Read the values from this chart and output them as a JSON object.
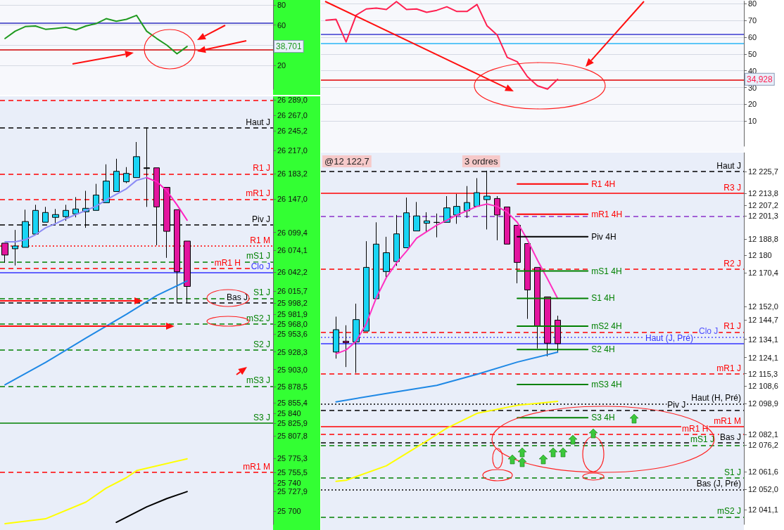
{
  "chart_data": [
    {
      "type": "line",
      "categories": [
        null,
        null,
        null,
        null,
        null,
        null,
        null,
        null,
        null,
        null,
        null,
        null,
        null,
        null,
        null,
        null,
        null,
        null,
        null,
        null,
        null,
        null,
        null,
        null,
        null,
        null,
        null
      ],
      "series": [
        {
          "color": "#1f9a1f",
          "values": [
            46.6,
            53.9,
            58.5,
            59.1,
            55.8,
            56.7,
            57.8,
            55.2,
            59.1,
            61.5,
            66.4,
            63.8,
            65.7,
            69.7,
            53.9,
            46.6,
            40,
            31.4,
            38.7,
            null,
            null,
            null,
            null,
            null,
            null,
            null,
            null
          ]
        }
      ],
      "ylim": [
        -4,
        85
      ],
      "yticks": [
        20,
        {
          "value": 40,
          "label": null
        },
        60,
        80
      ],
      "grid": "y",
      "marker": "none",
      "ref_lines": [
        {
          "axis": "y",
          "value": 61.8,
          "color": "#3030c0",
          "line_style": "solid"
        },
        {
          "axis": "y",
          "value": 35.2,
          "color": "#d00000",
          "line_style": "solid"
        }
      ],
      "annotations": [
        {
          "text": "38,701",
          "y": 38.701
        }
      ]
    },
    {
      "type": "candlestick",
      "categories": [
        null,
        null,
        null,
        null,
        null,
        null,
        null,
        null,
        null,
        null,
        null,
        null,
        null,
        null,
        null,
        null,
        null,
        null,
        null,
        null,
        null,
        null,
        null,
        null,
        null,
        null,
        null
      ],
      "ohlc": [
        [
          26084,
          26084,
          26056,
          26067
        ],
        [
          26076,
          26103,
          26052,
          26080
        ],
        [
          26078,
          26132,
          26078,
          26115
        ],
        [
          26097,
          26139,
          26097,
          26131
        ],
        [
          26114,
          26136,
          26114,
          26128
        ],
        [
          26121,
          26133,
          26113,
          26125
        ],
        [
          26122,
          26139,
          26116,
          26131
        ],
        [
          26126,
          26150,
          26121,
          26133
        ],
        [
          26129,
          26159,
          26106,
          26134
        ],
        [
          26131,
          26169,
          26131,
          26153
        ],
        [
          26142,
          26197,
          26142,
          26173
        ],
        [
          26158,
          26205,
          26158,
          26187
        ],
        [
          26172,
          26193,
          26170,
          26184
        ],
        [
          26178,
          26229,
          26178,
          26208
        ],
        [
          26192,
          26250,
          26136,
          26191
        ],
        [
          26192,
          26192,
          26081,
          26136
        ],
        [
          26164,
          26164,
          26063,
          26101
        ],
        [
          26132,
          26132,
          25998,
          26043
        ],
        [
          26087,
          26087,
          25999,
          26022
        ],
        null,
        null,
        null,
        null,
        null,
        null,
        null,
        null
      ],
      "colors": [
        "#e3159e",
        "#19d5f5",
        "#19d5f5",
        "#19d5f5",
        "#19d5f5",
        "#19d5f5",
        "#19d5f5",
        "#19d5f5",
        "#19d5f5",
        "#19d5f5",
        "#19d5f5",
        "#19d5f5",
        "#19d5f5",
        "#19d5f5",
        "#000000",
        "#e3159e",
        "#e3159e",
        "#e3159e",
        "#e3159e",
        null,
        null,
        null,
        null,
        null,
        null,
        null,
        null
      ],
      "series": [
        {
          "type": "line",
          "color": "#8c8cf5",
          "values": [
            26086,
            26086,
            26089,
            26096,
            26106,
            26112,
            26119,
            26125,
            26131,
            26137,
            26146,
            26154,
            26162,
            26174,
            26178,
            null,
            null,
            null,
            null,
            null,
            null,
            null,
            null,
            null,
            null,
            null,
            null
          ]
        },
        {
          "type": "line",
          "color": "#ff20c0",
          "values": [
            null,
            null,
            null,
            null,
            null,
            null,
            null,
            null,
            null,
            null,
            null,
            null,
            null,
            null,
            26178,
            26172,
            26159,
            26139,
            26117,
            null,
            null,
            null,
            null,
            null,
            null,
            null,
            null
          ]
        },
        {
          "type": "line",
          "color": "#1e88e5",
          "values": [
            25881,
            null,
            null,
            null,
            25913,
            null,
            null,
            null,
            25948,
            null,
            null,
            null,
            25982,
            null,
            null,
            26009,
            null,
            null,
            26030,
            null,
            null,
            null,
            null,
            null,
            null,
            null,
            null
          ]
        },
        {
          "type": "line",
          "color": "#ffff00",
          "values": [
            25682,
            null,
            null,
            null,
            25689,
            null,
            null,
            null,
            25713,
            null,
            25733,
            null,
            25748,
            25758,
            null,
            null,
            null,
            null,
            25775,
            null,
            null,
            null,
            null,
            null,
            null,
            null,
            null
          ]
        },
        {
          "type": "line",
          "color": "#000000",
          "values": [
            null,
            null,
            null,
            null,
            null,
            null,
            null,
            null,
            null,
            null,
            null,
            25684,
            null,
            null,
            25706,
            null,
            25718,
            null,
            25728,
            null,
            null,
            null,
            null,
            null,
            null,
            null,
            null
          ]
        }
      ],
      "ylim": [
        25681,
        26292
      ],
      "marker": "none",
      "yticks": [
        {
          "value": 26289,
          "label": "26 289,0"
        },
        {
          "value": 26267,
          "label": "26 267,0"
        },
        {
          "value": 26245.2,
          "label": "26 245,2"
        },
        {
          "value": 26217,
          "label": "26 217,0"
        },
        {
          "value": 26183.2,
          "label": "26 183,2"
        },
        {
          "value": 26147,
          "label": "26 147,0"
        },
        {
          "value": 26099.4,
          "label": "26 099,4"
        },
        {
          "value": 26074.1,
          "label": "26 074,1"
        },
        {
          "value": 26042.2,
          "label": "26 042,2"
        },
        {
          "value": 26015.7,
          "label": "26 015,7"
        },
        {
          "value": 25998.2,
          "label": "25 998,2"
        },
        {
          "value": 25981.9,
          "label": "25 981,9"
        },
        {
          "value": 25968,
          "label": "25 968,0"
        },
        {
          "value": 25953.6,
          "label": "25 953,6"
        },
        {
          "value": 25928.3,
          "label": "25 928,3"
        },
        {
          "value": 25903,
          "label": "25 903,0"
        },
        {
          "value": 25878.5,
          "label": "25 878,5"
        },
        {
          "value": 25855.4,
          "label": "25 855,4"
        },
        {
          "value": 25840,
          "label": "25 840"
        },
        {
          "value": 25825.9,
          "label": "25 825,9"
        },
        {
          "value": 25807.8,
          "label": "25 807,8"
        },
        {
          "value": 25775.3,
          "label": "25 775,3"
        },
        {
          "value": 25755.5,
          "label": "25 755,5"
        },
        {
          "value": 25740,
          "label": "25 740"
        },
        {
          "value": 25727.9,
          "label": "25 727,9"
        },
        {
          "value": 25700,
          "label": "25 700"
        }
      ],
      "ref_lines": [
        {
          "axis": "y",
          "value": 26289,
          "color": "#ff0000",
          "line_style": "dashed"
        },
        {
          "axis": "y",
          "value": 26249.2,
          "label": "Haut J",
          "color": "#000000",
          "line_style": "dashed"
        },
        {
          "axis": "y",
          "value": 26183.2,
          "label": "R1 J",
          "color": "#ff0000",
          "line_style": "dashed"
        },
        {
          "axis": "y",
          "value": 26147,
          "label": "mR1 J",
          "color": "#ff0000",
          "line_style": "dashed"
        },
        {
          "axis": "y",
          "value": 26110,
          "label": "Piv J",
          "color": "#000000",
          "line_style": "dashed"
        },
        {
          "axis": "y",
          "value": 26080,
          "label": "R1 M",
          "color": "#ff0000",
          "line_style": "dotted"
        },
        {
          "axis": "y",
          "value": 26057.5,
          "label": "mS1 J",
          "color": "#008000",
          "line_style": "dashed"
        },
        {
          "axis": "y",
          "value": 26047.5,
          "label": "mR1 H",
          "color": "#ff0000",
          "line_style": "dashed"
        },
        {
          "axis": "y",
          "value": 26042.2,
          "label": "Clo J",
          "color": "#3333ff",
          "line_style": "solid"
        },
        {
          "axis": "y",
          "value": 26005,
          "label": "S1 J",
          "color": "#008000",
          "line_style": "dashed"
        },
        {
          "axis": "y",
          "value": 25998.2,
          "label": "Bas J",
          "color": "#000000",
          "line_style": "dashed"
        },
        {
          "axis": "y",
          "value": 25968,
          "label": "mS2 J",
          "color": "#008000",
          "line_style": "dashed"
        },
        {
          "axis": "y",
          "value": 25931,
          "label": "S2 J",
          "color": "#008000",
          "line_style": "dashed"
        },
        {
          "axis": "y",
          "value": 25879,
          "label": "mS3 J",
          "color": "#008000",
          "line_style": "dashed"
        },
        {
          "axis": "y",
          "value": 25826,
          "label": "S3 J",
          "color": "#008000",
          "line_style": "solid"
        },
        {
          "axis": "y",
          "value": 25755.5,
          "label": "mR1 M",
          "color": "#ff0000",
          "line_style": "dashed"
        }
      ]
    },
    {
      "type": "line",
      "categories": [
        null,
        null,
        null,
        null,
        null,
        null,
        null,
        null,
        null,
        null,
        null,
        null,
        null,
        null,
        null,
        null,
        null,
        null,
        null,
        null,
        null,
        null,
        null,
        null,
        null,
        null,
        null,
        null,
        null,
        null,
        null,
        null,
        null,
        null,
        null,
        null,
        null,
        null,
        null,
        null,
        null,
        null
      ],
      "series": [
        {
          "color": "#ff1f50",
          "values": [
            70.2,
            70.7,
            57.2,
            73.2,
            76.9,
            77.4,
            76.6,
            81.3,
            76.6,
            76.9,
            74.9,
            76.1,
            78.2,
            75.4,
            75.4,
            79.6,
            66.8,
            61.4,
            48,
            45.4,
            36.5,
            31.1,
            29.1,
            34.9,
            null,
            null,
            null,
            null,
            null,
            null,
            null,
            null,
            null,
            null,
            null,
            null,
            null,
            null,
            null,
            null,
            null,
            null
          ]
        }
      ],
      "ylim": [
        -5,
        81.6
      ],
      "yticks": [
        10,
        20,
        30,
        40,
        50,
        60,
        70,
        80
      ],
      "grid": "y",
      "marker": "none",
      "ref_lines": [
        {
          "axis": "y",
          "value": 61.9,
          "color": "#3b3bd0",
          "line_style": "solid"
        },
        {
          "axis": "y",
          "value": 56.4,
          "color": "#29b6f6",
          "line_style": "solid"
        },
        {
          "axis": "y",
          "value": 34.6,
          "color": "#e00000",
          "line_style": "solid"
        }
      ],
      "annotations": [
        {
          "text": "34,928",
          "y": 34.928
        }
      ]
    },
    {
      "type": "candlestick",
      "categories": [
        null,
        null,
        null,
        null,
        null,
        null,
        null,
        null,
        null,
        null,
        null,
        null,
        null,
        null,
        null,
        null,
        null,
        null,
        null,
        null,
        null,
        null,
        null,
        null,
        null,
        null,
        null,
        null,
        null,
        null,
        null,
        null,
        null,
        null,
        null,
        null,
        null,
        null,
        null,
        null,
        null,
        null
      ],
      "ohlc": [
        null,
        [
          12127.1,
          12146.4,
          12123.5,
          12139.3
        ],
        [
          12133,
          12141.7,
          12118.9,
          12132.2
        ],
        [
          12132.6,
          12153.5,
          12115.7,
          12144.8
        ],
        [
          12138.5,
          12187.6,
          12138.5,
          12173.3
        ],
        [
          12156.2,
          12197.9,
          12156.2,
          12186
        ],
        [
          12171,
          12190,
          12167.8,
          12181.3
        ],
        [
          12176.5,
          12201.9,
          12174.1,
          12191.6
        ],
        [
          12184,
          12211.4,
          12184,
          12203.1
        ],
        [
          12193.2,
          12209,
          12193.2,
          12201.4
        ],
        [
          12197.4,
          12203.4,
          12192.4,
          12198.7
        ],
        [
          12197.9,
          12202.7,
          12189.7,
          12197.8
        ],
        [
          12197.9,
          12212.2,
          12197.9,
          12205.8
        ],
        [
          12201.9,
          12213.4,
          12197.1,
          12206.6
        ],
        [
          12204.2,
          12217.7,
          12200.3,
          12208.7
        ],
        [
          12206.6,
          12222,
          12206.6,
          12214.1
        ],
        [
          12210.3,
          12226.1,
          12194,
          12212.2
        ],
        [
          12210.9,
          12212.2,
          12188.1,
          12201.9
        ],
        [
          12206.3,
          12206.3,
          12186,
          12186
        ],
        [
          12196.3,
          12196.3,
          12164.6,
          12176
        ],
        [
          12186.3,
          12186.3,
          12145.2,
          12161
        ],
        [
          12173.3,
          12173.3,
          12129,
          12141.2
        ],
        [
          12157.2,
          12157.2,
          12124.7,
          12131.9
        ],
        [
          12144.5,
          12146.9,
          12126.6,
          12131.7
        ],
        null,
        null,
        null,
        null,
        null,
        null,
        null,
        null,
        null,
        null,
        null,
        null,
        null,
        null,
        null,
        null,
        null,
        null
      ],
      "colors": [
        null,
        "#19d5f5",
        "#e3159e",
        "#19d5f5",
        "#19d5f5",
        "#19d5f5",
        "#19d5f5",
        "#19d5f5",
        "#19d5f5",
        "#19d5f5",
        "#19d5f5",
        "#000000",
        "#19d5f5",
        "#19d5f5",
        "#19d5f5",
        "#19d5f5",
        "#19d5f5",
        "#e3159e",
        "#e3159e",
        "#e3159e",
        "#e3159e",
        "#e3159e",
        "#e3159e",
        "#e3159e",
        null,
        null,
        null,
        null,
        null,
        null,
        null,
        null,
        null,
        null,
        null,
        null,
        null,
        null,
        null,
        null,
        null,
        null
      ],
      "series": [
        {
          "type": "line",
          "color": "#ff30c0",
          "values": [
            null,
            12126.1,
            12128.2,
            12133,
            12142.5,
            12156.7,
            12167.8,
            12175.7,
            12182.1,
            12189.2,
            12192.8,
            12196.3,
            12199,
            12201.9,
            12204.2,
            12206.6,
            12207.9,
            12206.6,
            12203.4,
            12197.9,
            12188.4,
            12177.3,
            12167,
            12156.4,
            null,
            null,
            null,
            null,
            null,
            null,
            null,
            null,
            null,
            null,
            null,
            null,
            null,
            null,
            null,
            null,
            null,
            null
          ]
        },
        {
          "type": "line",
          "color": "#1e88e5",
          "values": [
            null,
            12099.9,
            null,
            null,
            null,
            null,
            12104.5,
            null,
            null,
            null,
            null,
            12108.9,
            null,
            null,
            null,
            12114.9,
            null,
            null,
            null,
            12121.6,
            null,
            null,
            null,
            12127,
            null,
            null,
            null,
            null,
            null,
            null,
            null,
            null,
            null,
            null,
            null,
            null,
            null,
            null,
            null,
            null,
            null,
            null
          ]
        },
        {
          "type": "line",
          "color": "#ffff00",
          "values": [
            null,
            12056.5,
            12057.1,
            null,
            null,
            null,
            12065,
            null,
            null,
            null,
            12078.5,
            null,
            12085.5,
            null,
            null,
            12093.6,
            null,
            null,
            null,
            12098,
            null,
            null,
            null,
            12100.2,
            null,
            null,
            null,
            null,
            null,
            null,
            null,
            null,
            null,
            null,
            null,
            null,
            null,
            null,
            null,
            null,
            null,
            null
          ]
        },
        {
          "type": "line",
          "name": "R1 4H",
          "color": "#ff0000",
          "values": [
            null,
            null,
            null,
            null,
            null,
            null,
            null,
            null,
            null,
            null,
            null,
            null,
            null,
            null,
            null,
            null,
            null,
            null,
            null,
            12218.8,
            12218.8,
            12218.8,
            12218.8,
            12218.8,
            12218.8,
            12218.8,
            12218.8,
            null,
            null,
            null,
            null,
            null,
            null,
            null,
            null,
            null,
            null,
            null,
            null,
            null,
            null,
            null
          ]
        },
        {
          "type": "line",
          "name": "mR1 4H",
          "color": "#ff0000",
          "values": [
            null,
            null,
            null,
            null,
            null,
            null,
            null,
            null,
            null,
            null,
            null,
            null,
            null,
            null,
            null,
            null,
            null,
            null,
            null,
            12202.3,
            12202.3,
            12202.3,
            12202.3,
            12202.3,
            12202.3,
            12202.3,
            12202.3,
            null,
            null,
            null,
            null,
            null,
            null,
            null,
            null,
            null,
            null,
            null,
            null,
            null,
            null,
            null
          ]
        },
        {
          "type": "line",
          "name": "Piv 4H",
          "color": "#000000",
          "values": [
            null,
            null,
            null,
            null,
            null,
            null,
            null,
            null,
            null,
            null,
            null,
            null,
            null,
            null,
            null,
            null,
            null,
            null,
            null,
            12190,
            12190,
            12190,
            12190,
            12190,
            12190,
            12190,
            12190,
            null,
            null,
            null,
            null,
            null,
            null,
            null,
            null,
            null,
            null,
            null,
            null,
            null,
            null,
            null
          ]
        },
        {
          "type": "line",
          "name": "mS1 4H",
          "color": "#008000",
          "values": [
            null,
            null,
            null,
            null,
            null,
            null,
            null,
            null,
            null,
            null,
            null,
            null,
            null,
            null,
            null,
            null,
            null,
            null,
            null,
            12171.3,
            12171.3,
            12171.3,
            12171.3,
            12171.3,
            12171.3,
            12171.3,
            12171.3,
            null,
            null,
            null,
            null,
            null,
            null,
            null,
            null,
            null,
            null,
            null,
            null,
            null,
            null,
            null
          ]
        },
        {
          "type": "line",
          "name": "S1 4H",
          "color": "#008000",
          "values": [
            null,
            null,
            null,
            null,
            null,
            null,
            null,
            null,
            null,
            null,
            null,
            null,
            null,
            null,
            null,
            null,
            null,
            null,
            null,
            12156.4,
            12156.4,
            12156.4,
            12156.4,
            12156.4,
            12156.4,
            12156.4,
            12156.4,
            null,
            null,
            null,
            null,
            null,
            null,
            null,
            null,
            null,
            null,
            null,
            null,
            null,
            null,
            null
          ]
        },
        {
          "type": "line",
          "name": "mS2 4H",
          "color": "#008000",
          "values": [
            null,
            null,
            null,
            null,
            null,
            null,
            null,
            null,
            null,
            null,
            null,
            null,
            null,
            null,
            null,
            null,
            null,
            null,
            null,
            12141.2,
            12141.2,
            12141.2,
            12141.2,
            12141.2,
            12141.2,
            12141.2,
            12141.2,
            null,
            null,
            null,
            null,
            null,
            null,
            null,
            null,
            null,
            null,
            null,
            null,
            null,
            null,
            null
          ]
        },
        {
          "type": "line",
          "name": "S2 4H",
          "color": "#008000",
          "values": [
            null,
            null,
            null,
            null,
            null,
            null,
            null,
            null,
            null,
            null,
            null,
            null,
            null,
            null,
            null,
            null,
            null,
            null,
            null,
            12128.5,
            12128.5,
            12128.5,
            12128.5,
            12128.5,
            12128.5,
            12128.5,
            12128.5,
            null,
            null,
            null,
            null,
            null,
            null,
            null,
            null,
            null,
            null,
            null,
            null,
            null,
            null,
            null
          ]
        },
        {
          "type": "line",
          "name": "mS3 4H",
          "color": "#008000",
          "values": [
            null,
            null,
            null,
            null,
            null,
            null,
            null,
            null,
            null,
            null,
            null,
            null,
            null,
            null,
            null,
            null,
            null,
            null,
            null,
            12109.4,
            12109.4,
            12109.4,
            12109.4,
            12109.4,
            12109.4,
            12109.4,
            12109.4,
            null,
            null,
            null,
            null,
            null,
            null,
            null,
            null,
            null,
            null,
            null,
            null,
            null,
            null,
            null
          ]
        },
        {
          "type": "line",
          "name": "S3 4H",
          "color": "#008000",
          "values": [
            null,
            null,
            null,
            null,
            null,
            null,
            null,
            null,
            null,
            null,
            null,
            null,
            null,
            null,
            null,
            null,
            null,
            null,
            null,
            12091.2,
            12091.2,
            12091.2,
            12091.2,
            12091.2,
            12091.2,
            12091.2,
            12091.2,
            null,
            null,
            null,
            null,
            null,
            null,
            null,
            null,
            null,
            null,
            null,
            null,
            null,
            null,
            null
          ]
        }
      ],
      "ylim": [
        12033,
        12236
      ],
      "marker": "none",
      "yticks": [
        {
          "value": 12225.7,
          "label": "12 225,7"
        },
        {
          "value": 12213.8,
          "label": "12 213,8"
        },
        {
          "value": 12207.2,
          "label": "12 207,2"
        },
        {
          "value": 12201.3,
          "label": "12 201,3"
        },
        {
          "value": 12188.8,
          "label": "12 188,8"
        },
        {
          "value": 12180,
          "label": "12 180"
        },
        {
          "value": 12170.4,
          "label": "12 170,4"
        },
        {
          "value": 12152,
          "label": "12 152,0"
        },
        {
          "value": 12144.7,
          "label": "12 144,7"
        },
        {
          "value": 12134.1,
          "label": "12 134,1"
        },
        {
          "value": 12124.1,
          "label": "12 124,1"
        },
        {
          "value": 12115.3,
          "label": "12 115,3"
        },
        {
          "value": 12108.6,
          "label": "12 108,6"
        },
        {
          "value": 12098.9,
          "label": "12 098,9"
        },
        {
          "value": 12082.1,
          "label": "12 082,1"
        },
        {
          "value": 12076.2,
          "label": "12 076,2"
        },
        {
          "value": 12061.6,
          "label": "12 061,6"
        },
        {
          "value": 12052,
          "label": "12 052,0"
        },
        {
          "value": 12041.1,
          "label": "12 041,1"
        }
      ],
      "ref_lines": [
        {
          "axis": "y",
          "value": 12225.7,
          "label": "Haut J",
          "color": "#000000",
          "line_style": "dashed"
        },
        {
          "axis": "y",
          "value": 12213.8,
          "label": "R3 J",
          "color": "#ff0000",
          "line_style": "solid"
        },
        {
          "axis": "y",
          "value": 12201.3,
          "color": "#8b2fc9",
          "line_style": "dashed"
        },
        {
          "axis": "y",
          "value": 12172.4,
          "label": "R2 J",
          "color": "#ff0000",
          "line_style": "dashed"
        },
        {
          "axis": "y",
          "value": 12138,
          "label": "R1 J",
          "color": "#ff0000",
          "line_style": "dashed"
        },
        {
          "axis": "y",
          "value": 12135.3,
          "label": "Clo J",
          "color": "#5050ff",
          "line_style": "dotted"
        },
        {
          "axis": "y",
          "value": 12131.7,
          "label": "Haut (J, Pré)",
          "color": "#3333ff",
          "line_style": "solid"
        },
        {
          "axis": "y",
          "value": 12115.3,
          "label": "mR1 J",
          "color": "#ff0000",
          "line_style": "dashed"
        },
        {
          "axis": "y",
          "value": 12098.9,
          "label": "Haut (H, Pré)",
          "color": "#000000",
          "line_style": "dotted"
        },
        {
          "axis": "y",
          "value": 12095.1,
          "label": "Piv J",
          "color": "#000000",
          "line_style": "dashed"
        },
        {
          "axis": "y",
          "value": 12086.3,
          "label": "mR1 M",
          "color": "#ff0000",
          "line_style": "solid"
        },
        {
          "axis": "y",
          "value": 12082.1,
          "label": "mR1 H",
          "color": "#ff0000",
          "line_style": "dashed"
        },
        {
          "axis": "y",
          "value": 12077.7,
          "label": "Bas J",
          "color": "#000000",
          "line_style": "dashed"
        },
        {
          "axis": "y",
          "value": 12076.2,
          "label": "mS1 J",
          "color": "#008000",
          "line_style": "dashed"
        },
        {
          "axis": "y",
          "value": 12058.3,
          "label": "S1 J",
          "color": "#008000",
          "line_style": "dashed"
        },
        {
          "axis": "y",
          "value": 12052,
          "label": "Bas (J, Pré)",
          "color": "#000000",
          "line_style": "dotted"
        },
        {
          "axis": "y",
          "value": 12037.1,
          "label": "mS2 J",
          "color": "#008000",
          "line_style": "dashed"
        }
      ],
      "annotations": [
        "@12 122,7",
        "3 ordres"
      ]
    }
  ]
}
